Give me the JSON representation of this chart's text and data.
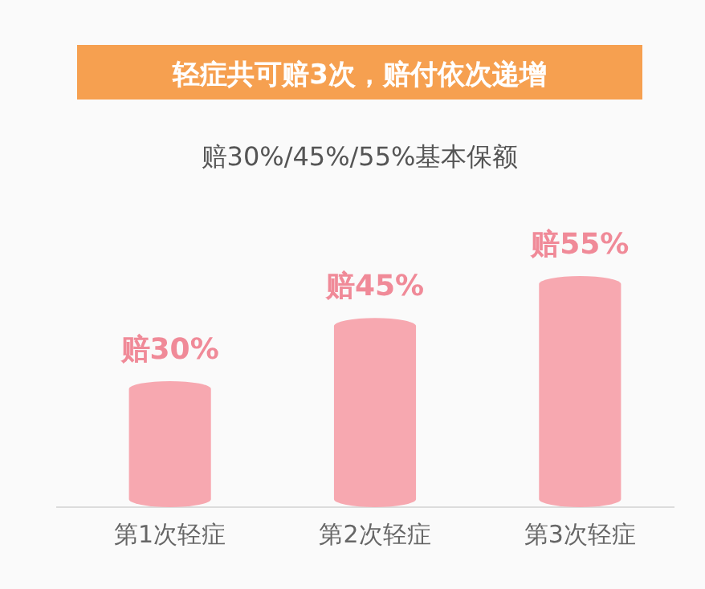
{
  "chart_data": {
    "type": "bar",
    "title": "轻症共可赔3次，赔付依次递增",
    "subtitle": "赔30%/45%/55%基本保额",
    "categories": [
      "第1次轻症",
      "第2次轻症",
      "第3次轻症"
    ],
    "values": [
      30,
      45,
      55
    ],
    "color": "#f7a8b0",
    "value_labels": [
      "赔30%",
      "赔45%",
      "赔55%"
    ]
  }
}
